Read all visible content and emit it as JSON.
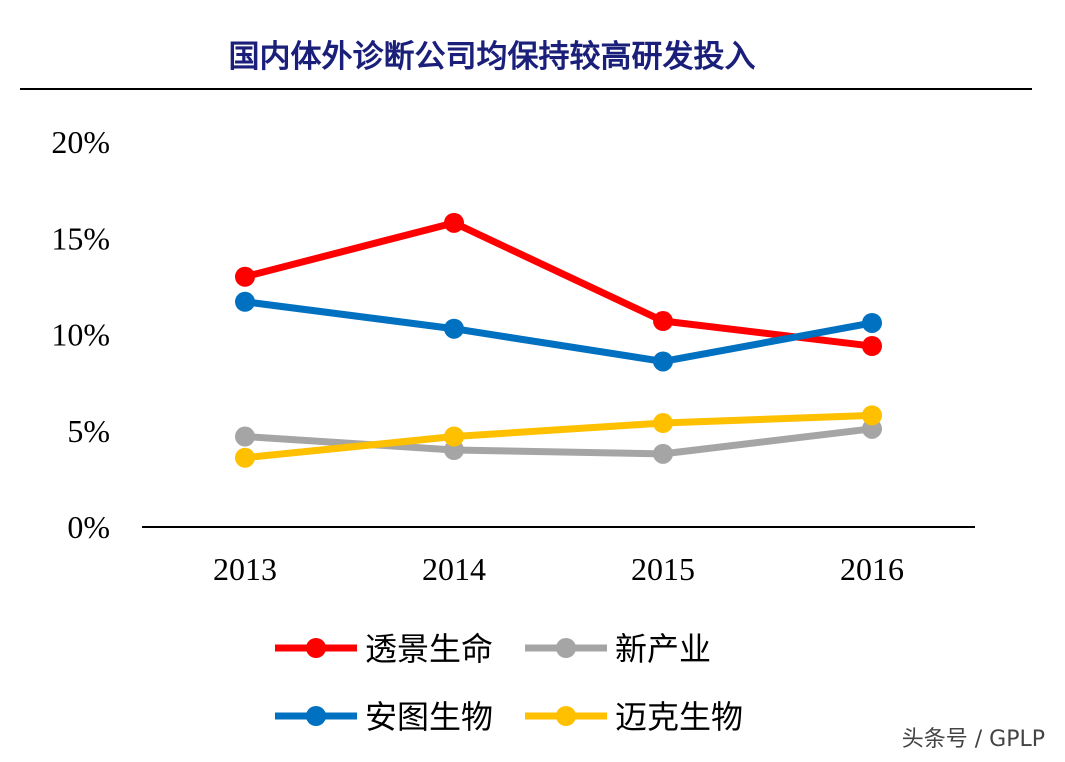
{
  "watermark": "头条号 / GPLP",
  "colors": {
    "title": "#1a1f7a",
    "red": "#ff0000",
    "blue": "#0070c0",
    "gray": "#a5a5a5",
    "yellow": "#ffc000"
  },
  "chart_data": {
    "type": "line",
    "title": "国内体外诊断公司均保持较高研发投入",
    "categories": [
      "2013",
      "2014",
      "2015",
      "2016"
    ],
    "y_ticks": [
      "0%",
      "5%",
      "10%",
      "15%",
      "20%"
    ],
    "ylim": [
      0,
      20
    ],
    "grid": false,
    "legend_position": "bottom",
    "series": [
      {
        "name": "透景生命",
        "color": "#ff0000",
        "values": [
          13.0,
          15.8,
          10.7,
          9.4
        ]
      },
      {
        "name": "新产业",
        "color": "#a5a5a5",
        "values": [
          4.7,
          4.0,
          3.8,
          5.1
        ]
      },
      {
        "name": "安图生物",
        "color": "#0070c0",
        "values": [
          11.7,
          10.3,
          8.6,
          10.6
        ]
      },
      {
        "name": "迈克生物",
        "color": "#ffc000",
        "values": [
          3.6,
          4.7,
          5.4,
          5.8
        ]
      }
    ]
  }
}
